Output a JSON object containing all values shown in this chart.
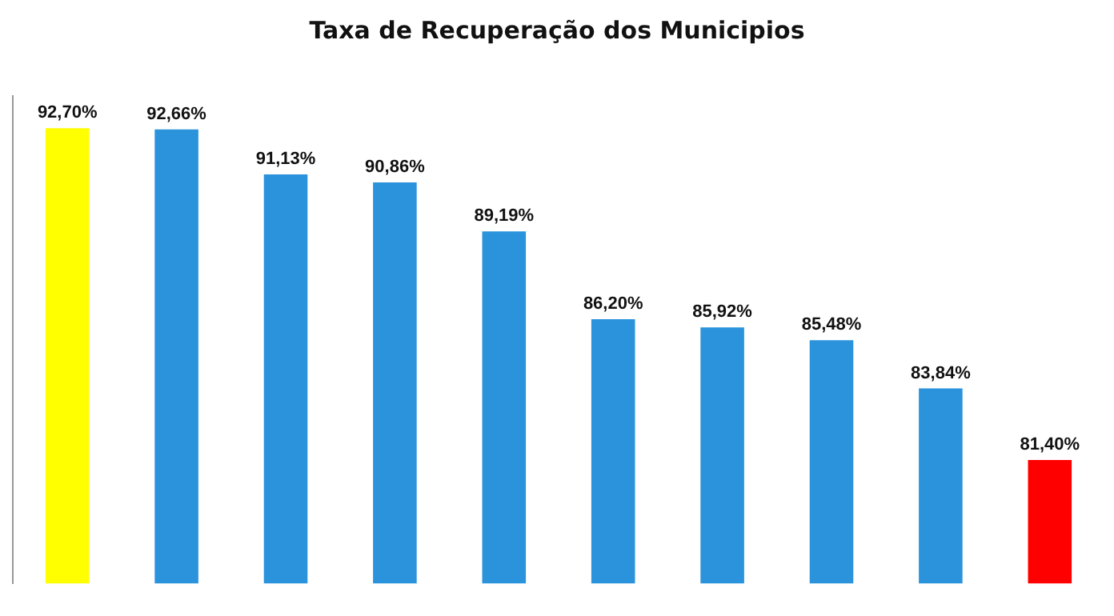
{
  "chart_data": {
    "type": "bar",
    "title": "Taxa de Recuperação dos Municipios",
    "categories": [
      null,
      null,
      null,
      null,
      null,
      null,
      null,
      null,
      null,
      null
    ],
    "values": [
      92.7,
      92.66,
      91.13,
      90.86,
      89.19,
      86.2,
      85.92,
      85.48,
      83.84,
      81.4
    ],
    "value_labels": [
      "92,70%",
      "92,66%",
      "91,13%",
      "90,86%",
      "89,19%",
      "86,20%",
      "85,92%",
      "85,48%",
      "83,84%",
      "81,40%"
    ],
    "colors": [
      "#ffff00",
      "#2a93dc",
      "#2a93dc",
      "#2a93dc",
      "#2a93dc",
      "#2a93dc",
      "#2a93dc",
      "#2a93dc",
      "#2a93dc",
      "#ff0000"
    ],
    "ylim": [
      77.2,
      93.8
    ],
    "grid": false,
    "legend": false
  }
}
